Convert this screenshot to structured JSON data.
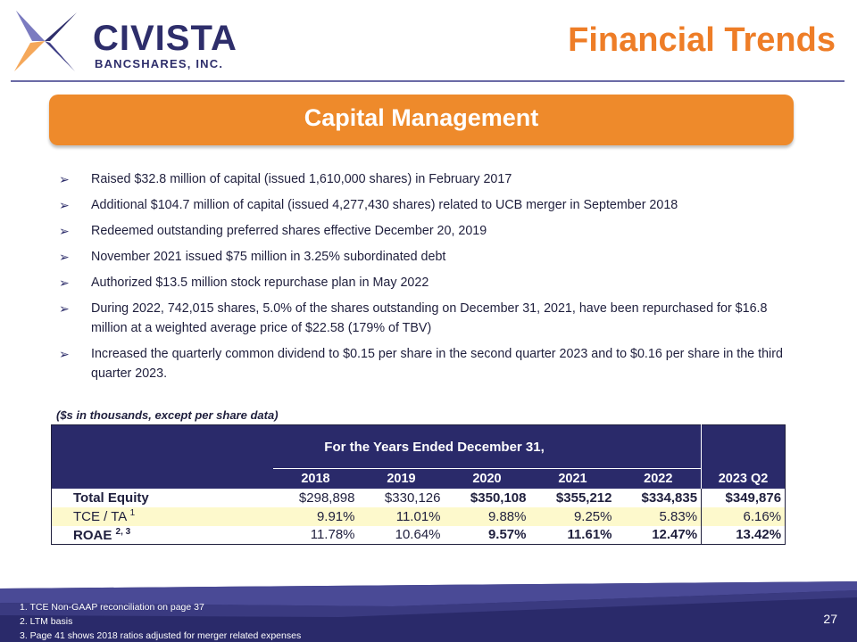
{
  "header": {
    "logo_name": "CIVISTA",
    "logo_sub": "BANCSHARES, INC.",
    "title": "Financial Trends"
  },
  "banner": {
    "title": "Capital Management"
  },
  "bullets": [
    "Raised $32.8 million of capital (issued 1,610,000 shares) in February 2017",
    "Additional $104.7 million of capital (issued 4,277,430 shares) related to UCB merger in September 2018",
    "Redeemed outstanding preferred shares effective December 20, 2019",
    "November 2021 issued $75 million in 3.25% subordinated debt",
    "Authorized $13.5 million stock repurchase plan in May 2022",
    "During 2022, 742,015 shares, 5.0% of the shares outstanding on December 31, 2021, have been repurchased for $16.8 million at a weighted average price of $22.58 (179% of TBV)",
    "Increased the quarterly common dividend to $0.15 per share in the second quarter 2023 and to $0.16 per share in the third quarter 2023."
  ],
  "table": {
    "caption": "($s in thousands, except per share data)",
    "period_header": "For the Years Ended December 31,",
    "years": [
      "2018",
      "2019",
      "2020",
      "2021",
      "2022"
    ],
    "latest_header": "2023 Q2",
    "rows": [
      {
        "label": "Total Equity",
        "sup": "",
        "values": [
          "$298,898",
          "$330,126",
          "$350,108",
          "$355,212",
          "$334,835",
          "$349,876"
        ]
      },
      {
        "label": "TCE / TA",
        "sup": "1",
        "values": [
          "9.91%",
          "11.01%",
          "9.88%",
          "9.25%",
          "5.83%",
          "6.16%"
        ]
      },
      {
        "label": "ROAE",
        "sup": "2, 3",
        "values": [
          "11.78%",
          "10.64%",
          "9.57%",
          "11.61%",
          "12.47%",
          "13.42%"
        ]
      }
    ]
  },
  "footnotes": [
    "1. TCE Non-GAAP reconciliation on page 37",
    "2. LTM basis",
    "3. Page 41 shows 2018 ratios  adjusted for merger related expenses"
  ],
  "page_number": "27",
  "colors": {
    "navy": "#2a2a6a",
    "orange": "#ee7d27",
    "highlight": "#fdf9cc"
  }
}
